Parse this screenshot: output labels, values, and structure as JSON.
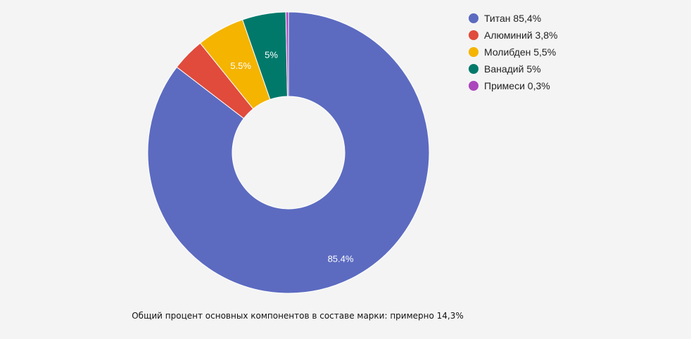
{
  "chart_data": {
    "type": "pie",
    "donut": true,
    "categories": [
      "Титан",
      "Алюминий",
      "Молибден",
      "Ванадий",
      "Примеси"
    ],
    "values": [
      85.4,
      3.8,
      5.5,
      5,
      0.3
    ],
    "slice_labels": [
      "85.4%",
      "",
      "5.5%",
      "5%",
      ""
    ],
    "colors": [
      "#5c6bc0",
      "#e04b3c",
      "#f4b400",
      "#00796b",
      "#ab47bc"
    ],
    "legend_entries": [
      "Титан 85,4%",
      "Алюминий 3,8%",
      "Молибден 5,5%",
      "Ванадий 5%",
      "Примеси 0,3%"
    ],
    "legend_position": "right"
  },
  "caption": "Общий процент основных компонентов в составе марки: примерно 14,3%"
}
